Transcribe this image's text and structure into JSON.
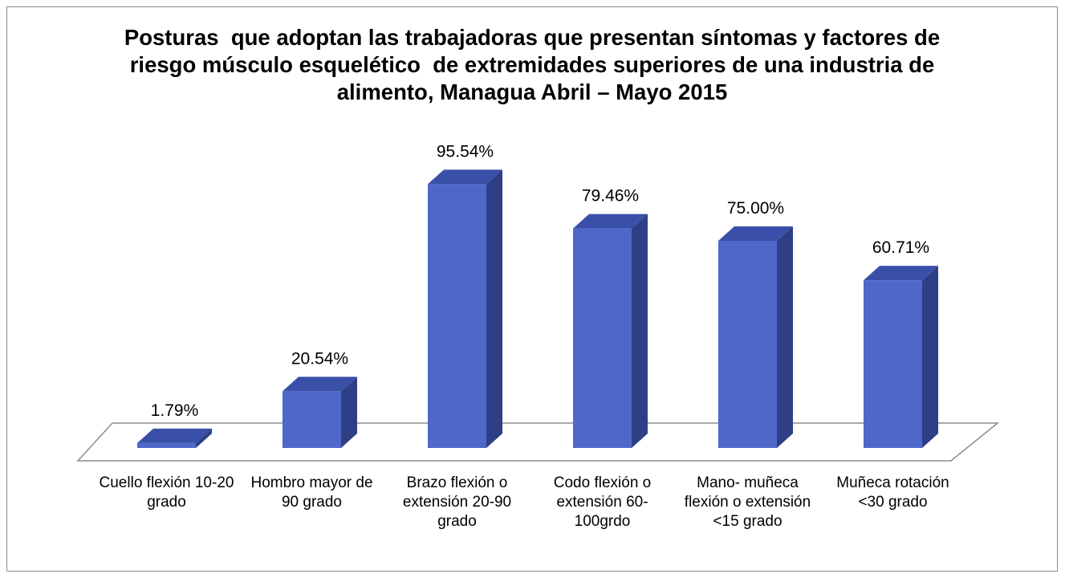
{
  "chart_data": {
    "type": "bar3d",
    "title": "Posturas  que adoptan las trabajadoras que presentan síntomas y factores de riesgo músculo esquelético  de extremidades superiores de una industria de alimento, Managua Abril – Mayo 2015",
    "categories": [
      "Cuello flexión 10-20 grado",
      "Hombro mayor de 90 grado",
      "Brazo flexión o extensión 20-90 grado",
      "Codo flexión o extensión 60-100grdo",
      "Mano- muñeca flexión o extensión <15 grado",
      "Muñeca rotación <30 grado"
    ],
    "values": [
      1.79,
      20.54,
      95.54,
      79.46,
      75.0,
      60.71
    ],
    "value_labels": [
      "1.79%",
      "20.54%",
      "95.54%",
      "79.46%",
      "75.00%",
      "60.71%"
    ],
    "color": "#4f67c9",
    "ylim": [
      0,
      100
    ]
  }
}
